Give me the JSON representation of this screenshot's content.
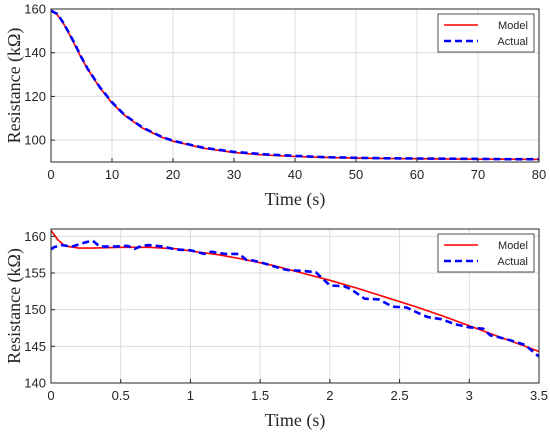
{
  "chart_data": [
    {
      "type": "line",
      "xlabel": "Time (s)",
      "ylabel": "Resistance (kΩ)",
      "xlim": [
        0,
        80
      ],
      "ylim": [
        90,
        160
      ],
      "xticks": [
        0,
        10,
        20,
        30,
        40,
        50,
        60,
        70,
        80
      ],
      "yticks": [
        100,
        120,
        140,
        160
      ],
      "grid": true,
      "legend_position": "top-right",
      "series": [
        {
          "name": "Model",
          "color": "#ff0000",
          "style": "solid",
          "x": [
            0,
            1,
            2,
            3,
            4,
            5,
            6,
            8,
            10,
            12,
            15,
            18,
            20,
            25,
            30,
            35,
            40,
            45,
            50,
            55,
            60,
            65,
            70,
            75,
            80
          ],
          "y": [
            159.0,
            157.5,
            153.5,
            148.5,
            143.0,
            137.5,
            132.5,
            124.0,
            117.0,
            111.5,
            105.5,
            101.5,
            99.5,
            96.3,
            94.3,
            93.2,
            92.5,
            92.1,
            91.8,
            91.6,
            91.5,
            91.4,
            91.3,
            91.3,
            91.2
          ]
        },
        {
          "name": "Actual",
          "color": "#0000ff",
          "style": "dashed",
          "x": [
            0,
            1,
            2,
            3,
            4,
            5,
            6,
            8,
            10,
            12,
            15,
            18,
            20,
            25,
            30,
            35,
            40,
            45,
            50,
            55,
            60,
            65,
            70,
            75,
            80
          ],
          "y": [
            159.2,
            157.8,
            153.8,
            148.8,
            143.5,
            137.8,
            132.7,
            124.2,
            117.3,
            111.7,
            105.8,
            101.7,
            99.7,
            96.5,
            94.6,
            93.5,
            92.8,
            92.2,
            91.9,
            91.7,
            91.6,
            91.5,
            91.4,
            91.3,
            91.3
          ]
        }
      ]
    },
    {
      "type": "line",
      "xlabel": "Time (s)",
      "ylabel": "Resistance (kΩ)",
      "xlim": [
        0,
        3.5
      ],
      "ylim": [
        140,
        161
      ],
      "xticks": [
        0,
        0.5,
        1,
        1.5,
        2,
        2.5,
        3,
        3.5
      ],
      "yticks": [
        140,
        145,
        150,
        155,
        160
      ],
      "grid": true,
      "legend_position": "top-right",
      "series": [
        {
          "name": "Model",
          "color": "#ff0000",
          "style": "solid",
          "x": [
            0,
            0.05,
            0.1,
            0.2,
            0.3,
            0.5,
            0.7,
            0.9,
            1.0,
            1.2,
            1.4,
            1.6,
            1.8,
            2.0,
            2.2,
            2.4,
            2.6,
            2.8,
            3.0,
            3.2,
            3.4,
            3.5
          ],
          "y": [
            160.8,
            159.5,
            158.7,
            158.4,
            158.4,
            158.5,
            158.5,
            158.3,
            158.0,
            157.5,
            156.8,
            156.0,
            155.0,
            154.0,
            152.9,
            151.7,
            150.5,
            149.2,
            147.8,
            146.4,
            145.0,
            144.3
          ]
        },
        {
          "name": "Actual",
          "color": "#0000ff",
          "style": "dashed",
          "x": [
            0,
            0.02,
            0.08,
            0.15,
            0.25,
            0.3,
            0.35,
            0.45,
            0.55,
            0.6,
            0.65,
            0.7,
            0.8,
            0.9,
            1.0,
            1.1,
            1.15,
            1.25,
            1.35,
            1.4,
            1.45,
            1.55,
            1.65,
            1.7,
            1.8,
            1.9,
            2.0,
            2.1,
            2.15,
            2.25,
            2.35,
            2.45,
            2.55,
            2.65,
            2.7,
            2.8,
            2.9,
            3.0,
            3.1,
            3.15,
            3.2,
            3.3,
            3.4,
            3.5
          ],
          "y": [
            158.2,
            158.5,
            158.8,
            158.6,
            159.2,
            159.4,
            158.6,
            158.6,
            158.7,
            158.3,
            158.7,
            158.8,
            158.6,
            158.2,
            158.1,
            157.6,
            157.9,
            157.6,
            157.6,
            156.8,
            156.7,
            156.2,
            155.6,
            155.4,
            155.3,
            155.1,
            153.3,
            153.2,
            152.8,
            151.5,
            151.4,
            150.4,
            150.3,
            149.4,
            149.0,
            148.7,
            148.0,
            147.6,
            147.4,
            146.5,
            146.3,
            145.8,
            145.2,
            143.6
          ]
        }
      ]
    }
  ]
}
